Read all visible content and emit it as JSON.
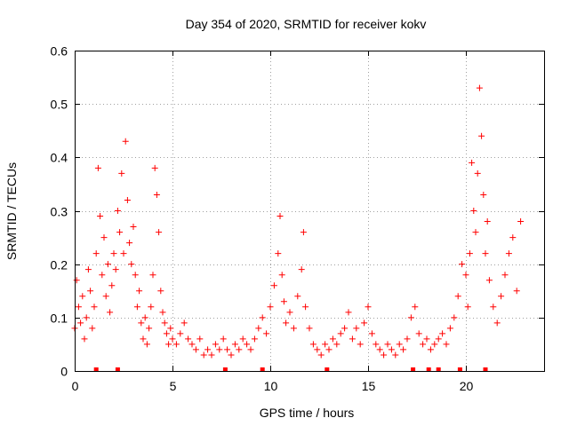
{
  "chart_data": {
    "type": "scatter",
    "title": "Day 354 of 2020, SRMTID for receiver kokv",
    "xlabel": "GPS time / hours",
    "ylabel": "SRMTID / TECUs",
    "xlim": [
      0,
      24
    ],
    "ylim": [
      0,
      0.6
    ],
    "x_ticks": [
      0,
      5,
      10,
      15,
      20
    ],
    "x_tick_labels": [
      "0",
      "5",
      "10",
      "15",
      "20"
    ],
    "y_ticks": [
      0,
      0.1,
      0.2,
      0.3,
      0.4,
      0.5,
      0.6
    ],
    "y_tick_labels": [
      "0",
      "0.1",
      "0.2",
      "0.3",
      "0.4",
      "0.5",
      "0.6"
    ],
    "grid": true,
    "marker": "plus",
    "series": [
      {
        "name": "SRMTID",
        "color": "#ff0000",
        "x": [
          0.0,
          0.1,
          0.2,
          0.3,
          0.4,
          0.5,
          0.6,
          0.7,
          0.8,
          0.9,
          1.0,
          1.1,
          1.2,
          1.3,
          1.4,
          1.5,
          1.6,
          1.7,
          1.8,
          1.9,
          2.0,
          2.1,
          2.2,
          2.3,
          2.4,
          2.5,
          2.6,
          2.7,
          2.8,
          2.9,
          3.0,
          3.1,
          3.2,
          3.3,
          3.4,
          3.5,
          3.6,
          3.7,
          3.8,
          3.9,
          4.0,
          4.1,
          4.2,
          4.3,
          4.4,
          4.5,
          4.6,
          4.7,
          4.8,
          4.9,
          5.0,
          5.2,
          5.4,
          5.6,
          5.8,
          6.0,
          6.2,
          6.4,
          6.6,
          6.8,
          7.0,
          7.2,
          7.4,
          7.6,
          7.8,
          8.0,
          8.2,
          8.4,
          8.6,
          8.8,
          9.0,
          9.2,
          9.4,
          9.6,
          9.8,
          10.0,
          10.2,
          10.4,
          10.5,
          10.6,
          10.7,
          10.8,
          11.0,
          11.2,
          11.4,
          11.6,
          11.7,
          11.8,
          12.0,
          12.2,
          12.4,
          12.6,
          12.8,
          13.0,
          13.2,
          13.4,
          13.6,
          13.8,
          14.0,
          14.2,
          14.4,
          14.6,
          14.8,
          15.0,
          15.2,
          15.4,
          15.6,
          15.8,
          16.0,
          16.2,
          16.4,
          16.6,
          16.8,
          17.0,
          17.2,
          17.4,
          17.6,
          17.8,
          18.0,
          18.2,
          18.4,
          18.6,
          18.8,
          19.0,
          19.2,
          19.4,
          19.6,
          19.8,
          20.0,
          20.1,
          20.2,
          20.3,
          20.4,
          20.5,
          20.6,
          20.7,
          20.8,
          20.9,
          21.0,
          21.1,
          21.2,
          21.4,
          21.6,
          21.8,
          22.0,
          22.2,
          22.4,
          22.6,
          22.8
        ],
        "y": [
          0.08,
          0.17,
          0.12,
          0.09,
          0.14,
          0.06,
          0.1,
          0.19,
          0.15,
          0.08,
          0.12,
          0.22,
          0.38,
          0.29,
          0.18,
          0.25,
          0.14,
          0.2,
          0.11,
          0.16,
          0.22,
          0.19,
          0.3,
          0.26,
          0.37,
          0.22,
          0.43,
          0.32,
          0.24,
          0.2,
          0.27,
          0.18,
          0.12,
          0.15,
          0.09,
          0.06,
          0.1,
          0.05,
          0.08,
          0.12,
          0.18,
          0.38,
          0.33,
          0.26,
          0.15,
          0.11,
          0.09,
          0.07,
          0.05,
          0.08,
          0.06,
          0.05,
          0.07,
          0.09,
          0.06,
          0.05,
          0.04,
          0.06,
          0.03,
          0.04,
          0.03,
          0.05,
          0.04,
          0.06,
          0.04,
          0.03,
          0.05,
          0.04,
          0.06,
          0.05,
          0.04,
          0.06,
          0.08,
          0.1,
          0.07,
          0.12,
          0.16,
          0.22,
          0.29,
          0.18,
          0.13,
          0.09,
          0.11,
          0.08,
          0.14,
          0.19,
          0.26,
          0.12,
          0.08,
          0.05,
          0.04,
          0.03,
          0.05,
          0.04,
          0.06,
          0.05,
          0.07,
          0.08,
          0.11,
          0.06,
          0.08,
          0.05,
          0.09,
          0.12,
          0.07,
          0.05,
          0.04,
          0.03,
          0.05,
          0.04,
          0.03,
          0.05,
          0.04,
          0.06,
          0.1,
          0.12,
          0.07,
          0.05,
          0.06,
          0.04,
          0.05,
          0.06,
          0.07,
          0.05,
          0.08,
          0.1,
          0.14,
          0.2,
          0.18,
          0.12,
          0.22,
          0.39,
          0.3,
          0.26,
          0.37,
          0.53,
          0.44,
          0.33,
          0.22,
          0.28,
          0.17,
          0.12,
          0.09,
          0.14,
          0.18,
          0.22,
          0.25,
          0.15,
          0.28
        ]
      }
    ],
    "bottom_markers_x": [
      1.1,
      2.2,
      7.7,
      9.6,
      12.9,
      17.3,
      18.1,
      18.6,
      19.7,
      21.0
    ]
  }
}
